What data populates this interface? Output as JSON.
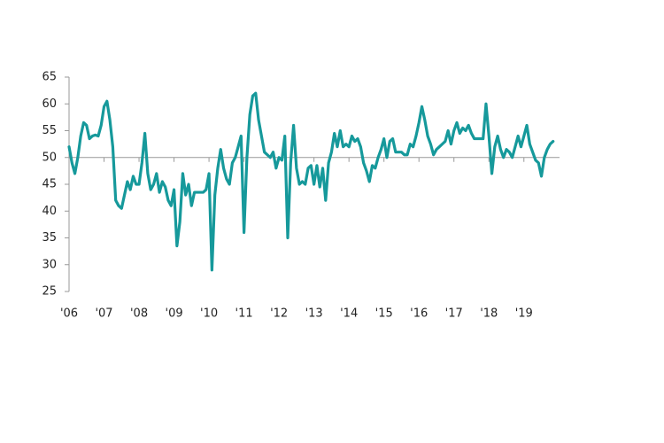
{
  "chart_data": {
    "type": "line",
    "values": [
      52,
      49,
      47,
      50,
      54,
      56.5,
      56,
      53.5,
      54,
      54.2,
      54,
      56,
      59.5,
      60.5,
      57,
      52,
      42,
      41,
      40.5,
      43,
      45.5,
      44,
      46.5,
      45,
      45,
      49,
      54.5,
      47,
      44,
      45,
      47,
      43.5,
      45.5,
      44.5,
      42,
      41,
      44,
      33.5,
      38,
      47,
      43,
      45,
      41,
      43.5,
      43.5,
      43.5,
      43.5,
      44,
      47,
      29,
      43,
      48,
      51.5,
      48,
      46,
      45,
      49,
      50,
      52,
      54,
      36,
      50,
      58,
      61.5,
      62,
      57,
      54,
      51,
      50.5,
      50,
      51,
      48,
      50,
      49.5,
      54,
      35,
      49,
      56,
      48,
      45,
      45.5,
      45,
      48,
      48.5,
      45,
      48.5,
      44.5,
      48,
      42,
      49,
      51,
      54.5,
      52,
      55,
      52,
      52.5,
      52,
      54,
      53,
      53.5,
      52,
      49,
      47.5,
      45.5,
      48.5,
      48,
      50,
      51.5,
      53.5,
      50,
      53,
      53.5,
      51,
      51,
      51,
      50.5,
      50.5,
      52.5,
      52,
      54,
      56.5,
      59.5,
      57,
      54,
      52.5,
      50.5,
      51.5,
      52,
      52.5,
      53,
      55,
      52.5,
      55,
      56.5,
      54.5,
      55.5,
      55,
      56,
      54.5,
      53.5,
      53.5,
      53.5,
      53.5,
      60,
      54,
      47,
      52,
      54,
      51.5,
      50,
      51.5,
      51,
      50,
      52,
      54,
      52,
      54,
      56,
      52.5,
      51,
      49.5,
      49,
      46.5,
      50,
      51.5,
      52.5,
      53
    ],
    "color": "#16999b",
    "xlim": [
      0,
      167
    ],
    "xticks": [
      {
        "value": 0,
        "label": "'06"
      },
      {
        "value": 12,
        "label": "'07"
      },
      {
        "value": 24,
        "label": "'08"
      },
      {
        "value": 36,
        "label": "'09"
      },
      {
        "value": 48,
        "label": "'10"
      },
      {
        "value": 60,
        "label": "'11"
      },
      {
        "value": 72,
        "label": "'12"
      },
      {
        "value": 84,
        "label": "'13"
      },
      {
        "value": 96,
        "label": "'14"
      },
      {
        "value": 108,
        "label": "'15"
      },
      {
        "value": 120,
        "label": "'16"
      },
      {
        "value": 132,
        "label": "'17"
      },
      {
        "value": 144,
        "label": "'18"
      },
      {
        "value": 156,
        "label": "'19"
      }
    ],
    "ylim": [
      25,
      65
    ],
    "yticks": [
      25,
      30,
      35,
      40,
      45,
      50,
      55,
      60,
      65
    ],
    "xaxis_crosses": 50,
    "grid": false
  }
}
